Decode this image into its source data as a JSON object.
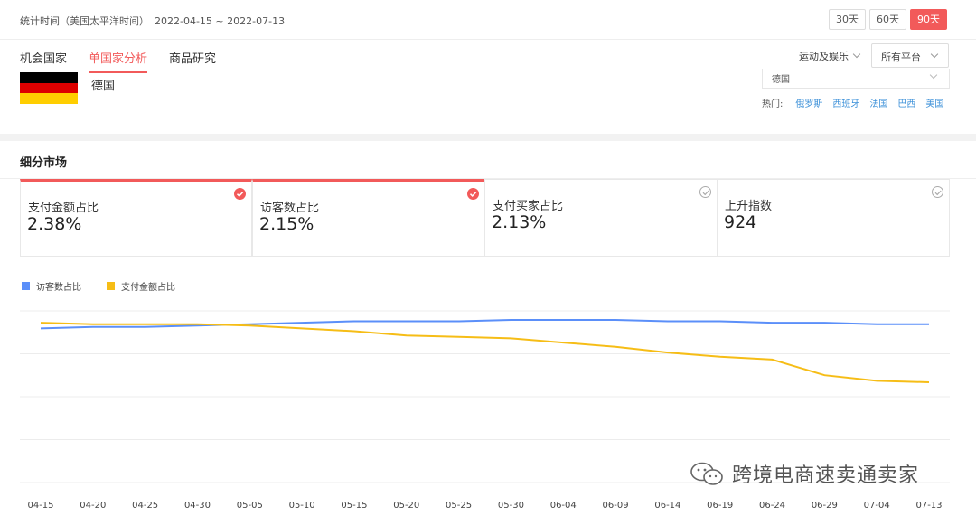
{
  "header": {
    "stat_label": "统计时间（美国太平洋时间）",
    "stat_range": "2022-04-15 ~ 2022-07-13",
    "ranges": [
      "30天",
      "60天",
      "90天"
    ],
    "active_range": "90天"
  },
  "nav": {
    "tabs": [
      "机会国家",
      "单国家分析",
      "商品研究"
    ],
    "active_tab": "单国家分析",
    "category": "运动及娱乐",
    "platform": "所有平台"
  },
  "country": {
    "name": "德国",
    "select_value": "德国",
    "flag_colors": [
      "#000000",
      "#dd0000",
      "#ffce00"
    ],
    "hot_label": "热门:",
    "hot_links": [
      "俄罗斯",
      "西班牙",
      "法国",
      "巴西",
      "美国"
    ]
  },
  "section": {
    "title": "细分市场"
  },
  "metrics": [
    {
      "label": "支付金额占比",
      "value": "2.38%",
      "selected": true
    },
    {
      "label": "访客数占比",
      "value": "2.15%",
      "selected": true
    },
    {
      "label": "支付买家占比",
      "value": "2.13%",
      "selected": false
    },
    {
      "label": "上升指数",
      "value": "924",
      "selected": false
    }
  ],
  "colors": {
    "accent": "#f25a5a",
    "link": "#3a8fd8",
    "series_visitors": "#5b8ff9",
    "series_payment": "#f6bd16"
  },
  "chart_data": {
    "type": "line",
    "x_ticks": [
      "04-15",
      "04-20",
      "04-25",
      "04-30",
      "05-05",
      "05-10",
      "05-15",
      "05-20",
      "05-25",
      "05-30",
      "06-04",
      "06-09",
      "06-14",
      "06-19",
      "06-24",
      "06-29",
      "07-04",
      "07-13"
    ],
    "grid": true,
    "legend": "top-left",
    "series": [
      {
        "name": "访客数占比",
        "color": "#5b8ff9",
        "values": [
          2.1,
          2.11,
          2.11,
          2.12,
          2.13,
          2.14,
          2.15,
          2.15,
          2.15,
          2.16,
          2.16,
          2.16,
          2.15,
          2.15,
          2.14,
          2.14,
          2.13,
          2.13
        ]
      },
      {
        "name": "支付金额占比",
        "color": "#f6bd16",
        "values": [
          2.14,
          2.13,
          2.13,
          2.13,
          2.12,
          2.1,
          2.08,
          2.05,
          2.04,
          2.03,
          2.0,
          1.97,
          1.93,
          1.9,
          1.88,
          1.77,
          1.73,
          1.72
        ]
      }
    ],
    "ylim": [
      1.0,
      2.3
    ]
  },
  "watermark": {
    "text": "跨境电商速卖通卖家"
  }
}
